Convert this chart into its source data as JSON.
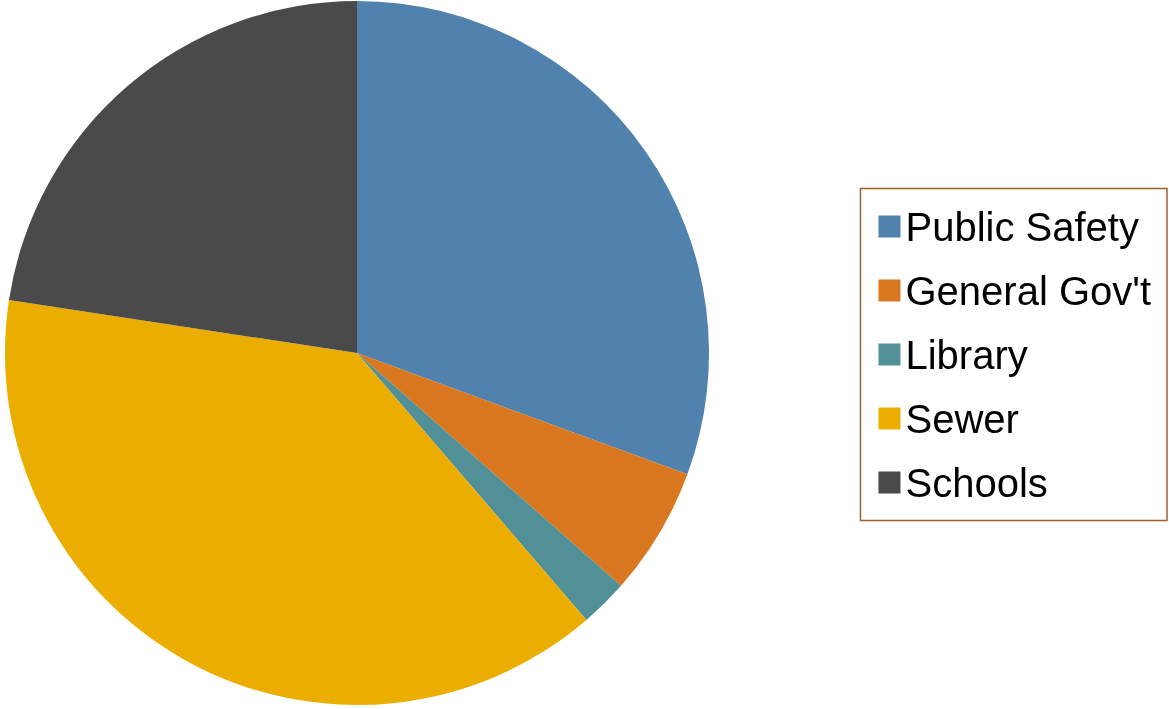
{
  "chart_data": {
    "type": "pie",
    "categories": [
      "Public Safety",
      "General Gov't",
      "Library",
      "Sewer",
      "Schools"
    ],
    "values": [
      30.6,
      5.9,
      2.2,
      38.7,
      22.6
    ],
    "colors": [
      "#5181ad",
      "#d97820",
      "#519096",
      "#ebae00",
      "#4a4a4a"
    ],
    "legend": "right"
  }
}
